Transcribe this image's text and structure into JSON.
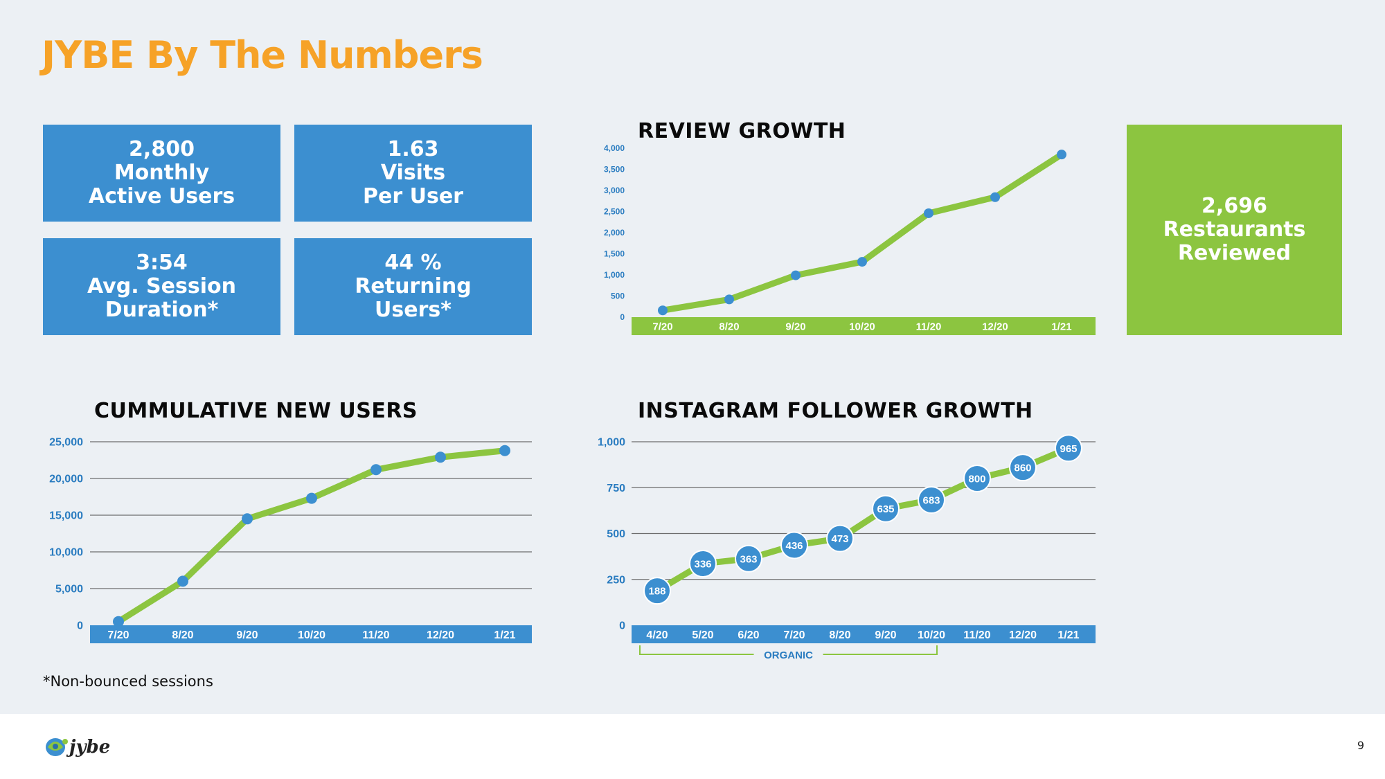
{
  "page": {
    "title": "JYBE By The Numbers",
    "footnote": "*Non-bounced sessions",
    "page_number": "9",
    "logo_text": "jybe"
  },
  "stats": [
    {
      "value": "2,800",
      "line1": "Monthly",
      "line2": "Active Users"
    },
    {
      "value": "1.63",
      "line1": "Visits",
      "line2": "Per User"
    },
    {
      "value": "3:54",
      "line1": "Avg. Session",
      "line2": "Duration*"
    },
    {
      "value": "44 %",
      "line1": "Returning",
      "line2": "Users*"
    },
    {
      "value": "2,696",
      "line1": "Restaurants",
      "line2": "Reviewed"
    }
  ],
  "colors": {
    "blue": "#3c8fd0",
    "green": "#8cc540",
    "orange": "#f6a227",
    "label_blue": "#2a7cc0"
  },
  "chart_data": [
    {
      "type": "line",
      "title": "REVIEW GROWTH",
      "categories": [
        "7/20",
        "8/20",
        "9/20",
        "10/20",
        "11/20",
        "12/20",
        "1/21"
      ],
      "values": [
        160,
        420,
        990,
        1310,
        2460,
        2840,
        3850
      ],
      "ylim": [
        0,
        4000
      ],
      "yticks": [
        "0",
        "500",
        "1,000",
        "1,500",
        "2,000",
        "2,500",
        "3,000",
        "3,500",
        "4,000"
      ],
      "grid": false
    },
    {
      "type": "line",
      "title": "CUMMULATIVE NEW USERS",
      "categories": [
        "7/20",
        "8/20",
        "9/20",
        "10/20",
        "11/20",
        "12/20",
        "1/21"
      ],
      "values": [
        500,
        6000,
        14500,
        17300,
        21200,
        22900,
        23800
      ],
      "ylim": [
        0,
        25000
      ],
      "yticks": [
        "0",
        "5,000",
        "10,000",
        "15,000",
        "20,000",
        "25,000"
      ],
      "grid": true
    },
    {
      "type": "line",
      "title": "INSTAGRAM FOLLOWER GROWTH",
      "categories": [
        "4/20",
        "5/20",
        "6/20",
        "7/20",
        "8/20",
        "9/20",
        "10/20",
        "11/20",
        "12/20",
        "1/21"
      ],
      "values": [
        188,
        336,
        363,
        436,
        473,
        635,
        683,
        800,
        860,
        965
      ],
      "labels": [
        "188",
        "336",
        "363",
        "436",
        "473",
        "635",
        "683",
        "800",
        "860",
        "965"
      ],
      "ylim": [
        0,
        1000
      ],
      "yticks": [
        "0",
        "250",
        "500",
        "750",
        "1,000"
      ],
      "grid": true,
      "bracket_label": "ORGANIC"
    }
  ]
}
